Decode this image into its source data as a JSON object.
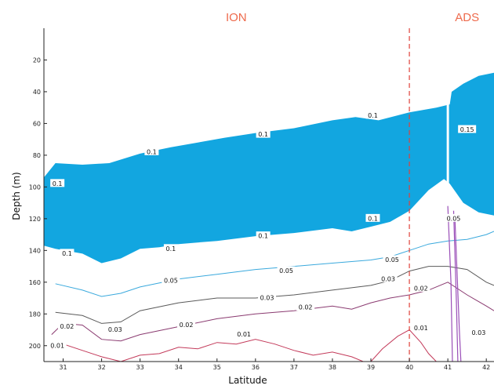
{
  "chart_data": {
    "type": "area",
    "title": "",
    "xlabel": "Latitude",
    "ylabel": "Depth (m)",
    "xlim": [
      30.5,
      42.2
    ],
    "ylim": [
      0,
      210
    ],
    "y_inverted": true,
    "x_ticks": [
      "31",
      "32",
      "33",
      "34",
      "35",
      "36",
      "37",
      "38",
      "39",
      "40",
      "41",
      "42"
    ],
    "y_ticks": [
      "20",
      "40",
      "60",
      "80",
      "100",
      "120",
      "140",
      "160",
      "180",
      "200"
    ],
    "regions": [
      {
        "label": "ION",
        "x": 35.5
      },
      {
        "label": "ADS",
        "x": 41.5
      }
    ],
    "boundary_x": 40,
    "colors": {
      "fill": "#12a6e0",
      "boundary": "#e0413a",
      "region_label": "#ee6a4c",
      "c005": "#3aa9dd",
      "c003": "#5a5a5a",
      "c002": "#8a3a70",
      "c001": "#c33a5a",
      "spike": "#9a4fb8"
    },
    "band": {
      "level": "0.1",
      "top": [
        {
          "x": 30.5,
          "y": 94
        },
        {
          "x": 30.8,
          "y": 85
        },
        {
          "x": 31.5,
          "y": 86
        },
        {
          "x": 32.2,
          "y": 85
        },
        {
          "x": 33.0,
          "y": 79
        },
        {
          "x": 33.8,
          "y": 75
        },
        {
          "x": 34.5,
          "y": 72
        },
        {
          "x": 35.2,
          "y": 69
        },
        {
          "x": 36.0,
          "y": 66
        },
        {
          "x": 37.0,
          "y": 63
        },
        {
          "x": 38.0,
          "y": 58
        },
        {
          "x": 38.6,
          "y": 56
        },
        {
          "x": 39.2,
          "y": 58
        },
        {
          "x": 40.0,
          "y": 53
        },
        {
          "x": 40.7,
          "y": 50
        },
        {
          "x": 41.05,
          "y": 48
        },
        {
          "x": 41.1,
          "y": 40
        },
        {
          "x": 41.4,
          "y": 35
        },
        {
          "x": 41.8,
          "y": 30
        },
        {
          "x": 42.2,
          "y": 28
        }
      ],
      "bottom": [
        {
          "x": 30.5,
          "y": 137
        },
        {
          "x": 30.8,
          "y": 139
        },
        {
          "x": 31.5,
          "y": 142
        },
        {
          "x": 32.0,
          "y": 148
        },
        {
          "x": 32.5,
          "y": 145
        },
        {
          "x": 33.0,
          "y": 139
        },
        {
          "x": 33.5,
          "y": 138
        },
        {
          "x": 34.0,
          "y": 136
        },
        {
          "x": 35.0,
          "y": 134
        },
        {
          "x": 36.0,
          "y": 131
        },
        {
          "x": 37.0,
          "y": 129
        },
        {
          "x": 38.0,
          "y": 126
        },
        {
          "x": 38.5,
          "y": 128
        },
        {
          "x": 39.0,
          "y": 125
        },
        {
          "x": 39.5,
          "y": 122
        },
        {
          "x": 40.0,
          "y": 115
        },
        {
          "x": 40.5,
          "y": 102
        },
        {
          "x": 40.9,
          "y": 95
        },
        {
          "x": 41.05,
          "y": 98
        },
        {
          "x": 41.4,
          "y": 110
        },
        {
          "x": 41.8,
          "y": 116
        },
        {
          "x": 42.2,
          "y": 118
        }
      ],
      "gap": {
        "x1": 40.97,
        "x2": 41.03,
        "y_top": 42,
        "y_bottom": 112
      }
    },
    "series": [
      {
        "level": "0.05",
        "color_key": "c005",
        "points": [
          {
            "x": 30.8,
            "y": 161
          },
          {
            "x": 31.5,
            "y": 165
          },
          {
            "x": 32.0,
            "y": 169
          },
          {
            "x": 32.5,
            "y": 167
          },
          {
            "x": 33.0,
            "y": 163
          },
          {
            "x": 34.0,
            "y": 158
          },
          {
            "x": 35.0,
            "y": 155
          },
          {
            "x": 36.0,
            "y": 152
          },
          {
            "x": 37.0,
            "y": 150
          },
          {
            "x": 38.0,
            "y": 148
          },
          {
            "x": 39.0,
            "y": 146
          },
          {
            "x": 39.5,
            "y": 144
          },
          {
            "x": 40.0,
            "y": 140
          },
          {
            "x": 40.5,
            "y": 136
          },
          {
            "x": 41.0,
            "y": 134
          },
          {
            "x": 41.5,
            "y": 133
          },
          {
            "x": 42.0,
            "y": 130
          },
          {
            "x": 42.2,
            "y": 128
          }
        ]
      },
      {
        "level": "0.03",
        "color_key": "c003",
        "points": [
          {
            "x": 30.8,
            "y": 179
          },
          {
            "x": 31.5,
            "y": 181
          },
          {
            "x": 32.0,
            "y": 186
          },
          {
            "x": 32.5,
            "y": 185
          },
          {
            "x": 33.0,
            "y": 178
          },
          {
            "x": 34.0,
            "y": 173
          },
          {
            "x": 35.0,
            "y": 170
          },
          {
            "x": 36.0,
            "y": 170
          },
          {
            "x": 37.0,
            "y": 168
          },
          {
            "x": 38.0,
            "y": 165
          },
          {
            "x": 39.0,
            "y": 162
          },
          {
            "x": 39.5,
            "y": 159
          },
          {
            "x": 40.0,
            "y": 153
          },
          {
            "x": 40.5,
            "y": 150
          },
          {
            "x": 41.0,
            "y": 150
          },
          {
            "x": 41.5,
            "y": 152
          },
          {
            "x": 42.0,
            "y": 160
          },
          {
            "x": 42.2,
            "y": 162
          }
        ]
      },
      {
        "level": "0.02",
        "color_key": "c002",
        "points": [
          {
            "x": 30.7,
            "y": 193
          },
          {
            "x": 31.0,
            "y": 186
          },
          {
            "x": 31.5,
            "y": 187
          },
          {
            "x": 32.0,
            "y": 196
          },
          {
            "x": 32.5,
            "y": 197
          },
          {
            "x": 33.0,
            "y": 193
          },
          {
            "x": 34.0,
            "y": 188
          },
          {
            "x": 35.0,
            "y": 183
          },
          {
            "x": 36.0,
            "y": 180
          },
          {
            "x": 37.0,
            "y": 178
          },
          {
            "x": 38.0,
            "y": 175
          },
          {
            "x": 38.5,
            "y": 177
          },
          {
            "x": 39.0,
            "y": 173
          },
          {
            "x": 39.5,
            "y": 170
          },
          {
            "x": 40.0,
            "y": 168
          },
          {
            "x": 40.5,
            "y": 165
          },
          {
            "x": 41.0,
            "y": 160
          },
          {
            "x": 41.5,
            "y": 168
          },
          {
            "x": 42.0,
            "y": 175
          },
          {
            "x": 42.2,
            "y": 178
          }
        ]
      },
      {
        "level": "0.01",
        "color_key": "c001",
        "points": [
          {
            "x": 30.7,
            "y": 202
          },
          {
            "x": 31.0,
            "y": 199
          },
          {
            "x": 31.5,
            "y": 203
          },
          {
            "x": 32.0,
            "y": 207
          },
          {
            "x": 32.5,
            "y": 210
          },
          {
            "x": 33.0,
            "y": 206
          },
          {
            "x": 33.5,
            "y": 205
          },
          {
            "x": 34.0,
            "y": 201
          },
          {
            "x": 34.5,
            "y": 202
          },
          {
            "x": 35.0,
            "y": 198
          },
          {
            "x": 35.5,
            "y": 199
          },
          {
            "x": 36.0,
            "y": 196
          },
          {
            "x": 36.5,
            "y": 199
          },
          {
            "x": 37.0,
            "y": 203
          },
          {
            "x": 37.5,
            "y": 206
          },
          {
            "x": 38.0,
            "y": 204
          },
          {
            "x": 38.5,
            "y": 207
          },
          {
            "x": 38.8,
            "y": 210
          }
        ]
      },
      {
        "level": "0.01",
        "color_key": "c001",
        "points": [
          {
            "x": 39.0,
            "y": 210
          },
          {
            "x": 39.3,
            "y": 202
          },
          {
            "x": 39.7,
            "y": 194
          },
          {
            "x": 40.0,
            "y": 190
          },
          {
            "x": 40.3,
            "y": 198
          },
          {
            "x": 40.5,
            "y": 205
          },
          {
            "x": 40.7,
            "y": 210
          }
        ]
      }
    ],
    "labels": [
      {
        "text": "0.1",
        "x": 30.85,
        "y": 98
      },
      {
        "text": "0.1",
        "x": 33.3,
        "y": 78
      },
      {
        "text": "0.1",
        "x": 36.2,
        "y": 67
      },
      {
        "text": "0.1",
        "x": 39.05,
        "y": 55
      },
      {
        "text": "0.15",
        "x": 41.5,
        "y": 64
      },
      {
        "text": "0.1",
        "x": 39.05,
        "y": 120
      },
      {
        "text": "0.1",
        "x": 36.2,
        "y": 131
      },
      {
        "text": "0.1",
        "x": 33.8,
        "y": 139
      },
      {
        "text": "0.1",
        "x": 31.1,
        "y": 142
      },
      {
        "text": "0.05",
        "x": 41.15,
        "y": 120
      },
      {
        "text": "0.05",
        "x": 33.8,
        "y": 159
      },
      {
        "text": "0.05",
        "x": 36.8,
        "y": 153
      },
      {
        "text": "0.05",
        "x": 39.55,
        "y": 146
      },
      {
        "text": "0.03",
        "x": 32.35,
        "y": 190
      },
      {
        "text": "0.03",
        "x": 36.3,
        "y": 170
      },
      {
        "text": "0.03",
        "x": 39.45,
        "y": 158
      },
      {
        "text": "0.03",
        "x": 41.8,
        "y": 192
      },
      {
        "text": "0.02",
        "x": 31.1,
        "y": 188
      },
      {
        "text": "0.02",
        "x": 34.2,
        "y": 187
      },
      {
        "text": "0.02",
        "x": 37.3,
        "y": 176
      },
      {
        "text": "0.02",
        "x": 40.3,
        "y": 164
      },
      {
        "text": "0.01",
        "x": 30.85,
        "y": 200
      },
      {
        "text": "0.01",
        "x": 35.7,
        "y": 193
      },
      {
        "text": "0.01",
        "x": 40.3,
        "y": 189
      }
    ]
  }
}
